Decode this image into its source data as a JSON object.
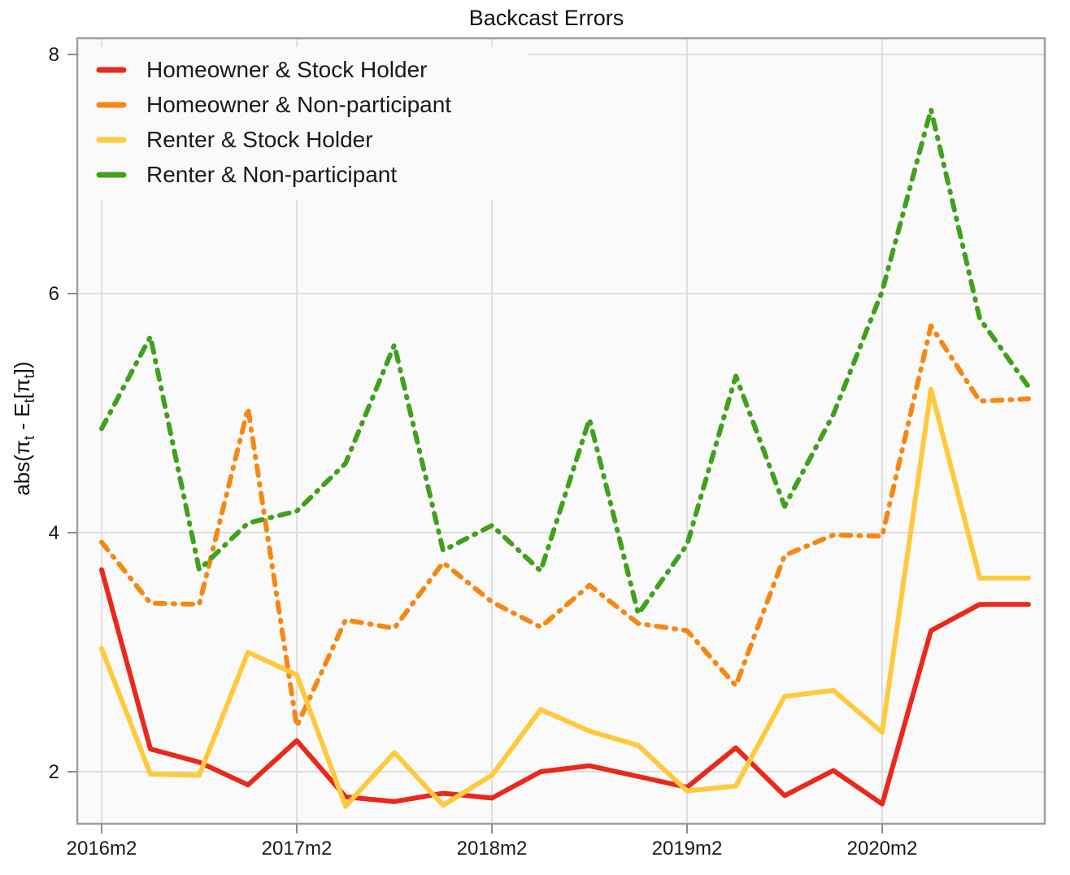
{
  "figure": {
    "background": "#ffffff",
    "plot_background": "#fafafa",
    "grid_color": "#dedede",
    "border_color": "#9e9e9e",
    "tick_color": "#8c8c8c",
    "text_color": "#1a1a1a"
  },
  "chart_data": {
    "type": "line",
    "title": "Backcast Errors",
    "xlabel": "",
    "ylabel": "abs(πt - Et[πt])",
    "ylabel_parts": [
      {
        "text": "abs(π",
        "sub": false
      },
      {
        "text": "t",
        "sub": true
      },
      {
        "text": " - E",
        "sub": false
      },
      {
        "text": "t",
        "sub": true
      },
      {
        "text": "[π",
        "sub": false
      },
      {
        "text": "t",
        "sub": true
      },
      {
        "text": "])",
        "sub": false
      }
    ],
    "grid": true,
    "legend_position": "top-left",
    "ylim": [
      1.55,
      8.15
    ],
    "y_ticks": [
      2,
      4,
      6,
      8
    ],
    "x_tick_labels": [
      "2016m2",
      "2017m2",
      "2018m2",
      "2019m2",
      "2020m2"
    ],
    "x_categories": [
      "2016m2",
      "2016m5",
      "2016m8",
      "2016m11",
      "2017m2",
      "2017m5",
      "2017m8",
      "2017m11",
      "2018m2",
      "2018m5",
      "2018m8",
      "2018m11",
      "2019m2",
      "2019m5",
      "2019m8",
      "2019m11",
      "2020m2",
      "2020m5",
      "2020m8",
      "2020m11"
    ],
    "series": [
      {
        "name": "Homeowner & Stock Holder",
        "color": "#E8291C",
        "dash": "solid",
        "values": [
          3.69,
          2.19,
          2.08,
          1.89,
          2.26,
          1.79,
          1.75,
          1.82,
          1.78,
          2.0,
          2.05,
          1.96,
          1.87,
          2.2,
          1.8,
          2.01,
          1.73,
          3.18,
          3.4,
          3.4
        ]
      },
      {
        "name": "Homeowner & Non-participant",
        "color": "#F68712",
        "dash": "dash-dot",
        "values": [
          3.92,
          3.41,
          3.4,
          5.04,
          2.38,
          3.27,
          3.2,
          3.75,
          3.42,
          3.21,
          3.56,
          3.24,
          3.18,
          2.72,
          3.81,
          3.98,
          3.97,
          5.73,
          5.1,
          5.12
        ]
      },
      {
        "name": "Renter & Stock Holder",
        "color": "#FFC93C",
        "dash": "solid",
        "values": [
          3.03,
          1.98,
          1.97,
          3.0,
          2.81,
          1.71,
          2.16,
          1.72,
          1.97,
          2.52,
          2.34,
          2.22,
          1.84,
          1.88,
          2.63,
          2.68,
          2.33,
          5.2,
          3.62,
          3.62
        ]
      },
      {
        "name": "Renter & Non-participant",
        "color": "#3FA11C",
        "dash": "dash-dot",
        "values": [
          4.87,
          5.64,
          3.69,
          4.08,
          4.18,
          4.58,
          5.57,
          3.85,
          4.06,
          3.68,
          4.95,
          3.32,
          3.9,
          5.31,
          4.22,
          4.99,
          6.02,
          7.54,
          5.79,
          5.22
        ]
      }
    ]
  }
}
